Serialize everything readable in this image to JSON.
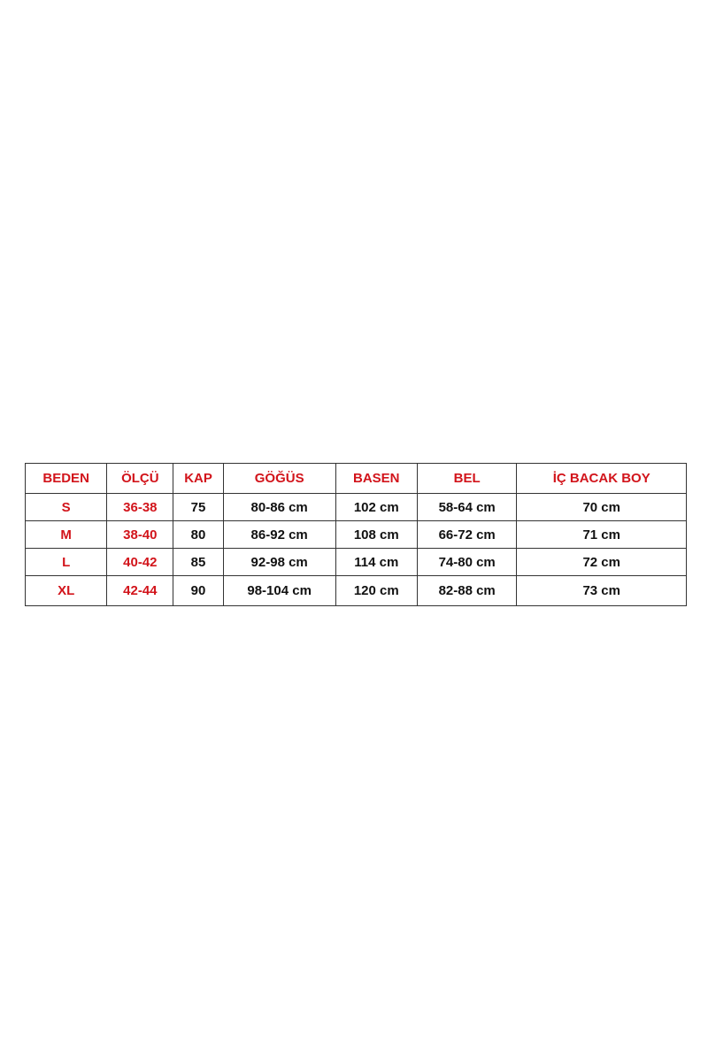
{
  "table": {
    "header": [
      "BEDEN",
      "ÖLÇÜ",
      "KAP",
      "GÖĞÜS",
      "BASEN",
      "BEL",
      "İÇ BACAK BOY"
    ],
    "rows": [
      [
        "S",
        "36-38",
        "75",
        "80-86 cm",
        "102 cm",
        "58-64 cm",
        "70 cm"
      ],
      [
        "M",
        "38-40",
        "80",
        "86-92 cm",
        "108 cm",
        "66-72 cm",
        "71 cm"
      ],
      [
        "L",
        "40-42",
        "85",
        "92-98 cm",
        "114 cm",
        "74-80 cm",
        "72 cm"
      ],
      [
        "XL",
        "42-44",
        "90",
        "98-104 cm",
        "120 cm",
        "82-88 cm",
        "73 cm"
      ]
    ]
  }
}
